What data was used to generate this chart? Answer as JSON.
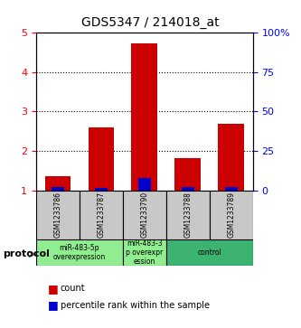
{
  "title": "GDS5347 / 214018_at",
  "samples": [
    "GSM1233786",
    "GSM1233787",
    "GSM1233790",
    "GSM1233788",
    "GSM1233789"
  ],
  "red_values": [
    1.35,
    2.6,
    4.72,
    1.82,
    2.68
  ],
  "blue_values": [
    1.05,
    1.04,
    1.28,
    1.07,
    1.05
  ],
  "ylim_left": [
    1,
    5
  ],
  "ylim_right": [
    0,
    100
  ],
  "yticks_left": [
    1,
    2,
    3,
    4,
    5
  ],
  "yticks_right": [
    0,
    25,
    50,
    75,
    100
  ],
  "ytick_labels_right": [
    "0",
    "25",
    "50",
    "75",
    "100%"
  ],
  "bar_width": 0.6,
  "groups": [
    {
      "label": "miR-483-5p\noverexpression",
      "indices": [
        0,
        1
      ],
      "color": "#90EE90"
    },
    {
      "label": "miR-483-3\np overexpr\nession",
      "indices": [
        2
      ],
      "color": "#90EE90"
    },
    {
      "label": "control",
      "indices": [
        3,
        4
      ],
      "color": "#3CB371"
    }
  ],
  "protocol_label": "protocol",
  "legend_red": "count",
  "legend_blue": "percentile rank within the sample",
  "red_color": "#CC0000",
  "blue_color": "#0000CC",
  "axis_bg": "#E8E8E8",
  "grid_color": "#000000"
}
